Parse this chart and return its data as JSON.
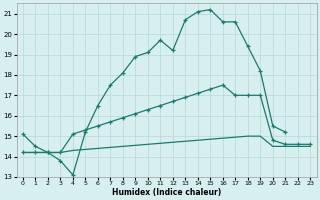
{
  "xlabel": "Humidex (Indice chaleur)",
  "bg_color": "#d8eff0",
  "grid_color": "#b8d8d8",
  "line_color": "#1a7a6e",
  "xlim": [
    -0.5,
    23.5
  ],
  "ylim": [
    13,
    21.5
  ],
  "xticks": [
    0,
    1,
    2,
    3,
    4,
    5,
    6,
    7,
    8,
    9,
    10,
    11,
    12,
    13,
    14,
    15,
    16,
    17,
    18,
    19,
    20,
    21,
    22,
    23
  ],
  "yticks": [
    13,
    14,
    15,
    16,
    17,
    18,
    19,
    20,
    21
  ],
  "line1_x": [
    0,
    1,
    2,
    3,
    4,
    5,
    6,
    7,
    8,
    9,
    10,
    11,
    12,
    13,
    14,
    15,
    16,
    17,
    18,
    19,
    20,
    21
  ],
  "line1_y": [
    15.1,
    14.5,
    14.2,
    13.8,
    13.1,
    15.2,
    16.5,
    17.5,
    18.1,
    18.9,
    19.1,
    19.7,
    19.2,
    20.7,
    21.1,
    21.2,
    20.6,
    20.6,
    19.4,
    18.2,
    15.5,
    15.2
  ],
  "line2_x": [
    0,
    1,
    2,
    3,
    4,
    5,
    6,
    7,
    8,
    9,
    10,
    11,
    12,
    13,
    14,
    15,
    16,
    17,
    18,
    19,
    20,
    21,
    22,
    23
  ],
  "line2_y": [
    14.2,
    14.2,
    14.2,
    14.2,
    15.1,
    15.3,
    15.5,
    15.7,
    15.9,
    16.1,
    16.3,
    16.5,
    16.7,
    16.9,
    17.1,
    17.3,
    17.5,
    17.0,
    17.0,
    17.0,
    14.8,
    14.6,
    14.6,
    14.6
  ],
  "line3_x": [
    0,
    1,
    2,
    3,
    4,
    5,
    6,
    7,
    8,
    9,
    10,
    11,
    12,
    13,
    14,
    15,
    16,
    17,
    18,
    19,
    20,
    21,
    22,
    23
  ],
  "line3_y": [
    14.2,
    14.2,
    14.2,
    14.2,
    14.3,
    14.35,
    14.4,
    14.45,
    14.5,
    14.55,
    14.6,
    14.65,
    14.7,
    14.75,
    14.8,
    14.85,
    14.9,
    14.95,
    15.0,
    15.0,
    14.5,
    14.5,
    14.5,
    14.5
  ]
}
